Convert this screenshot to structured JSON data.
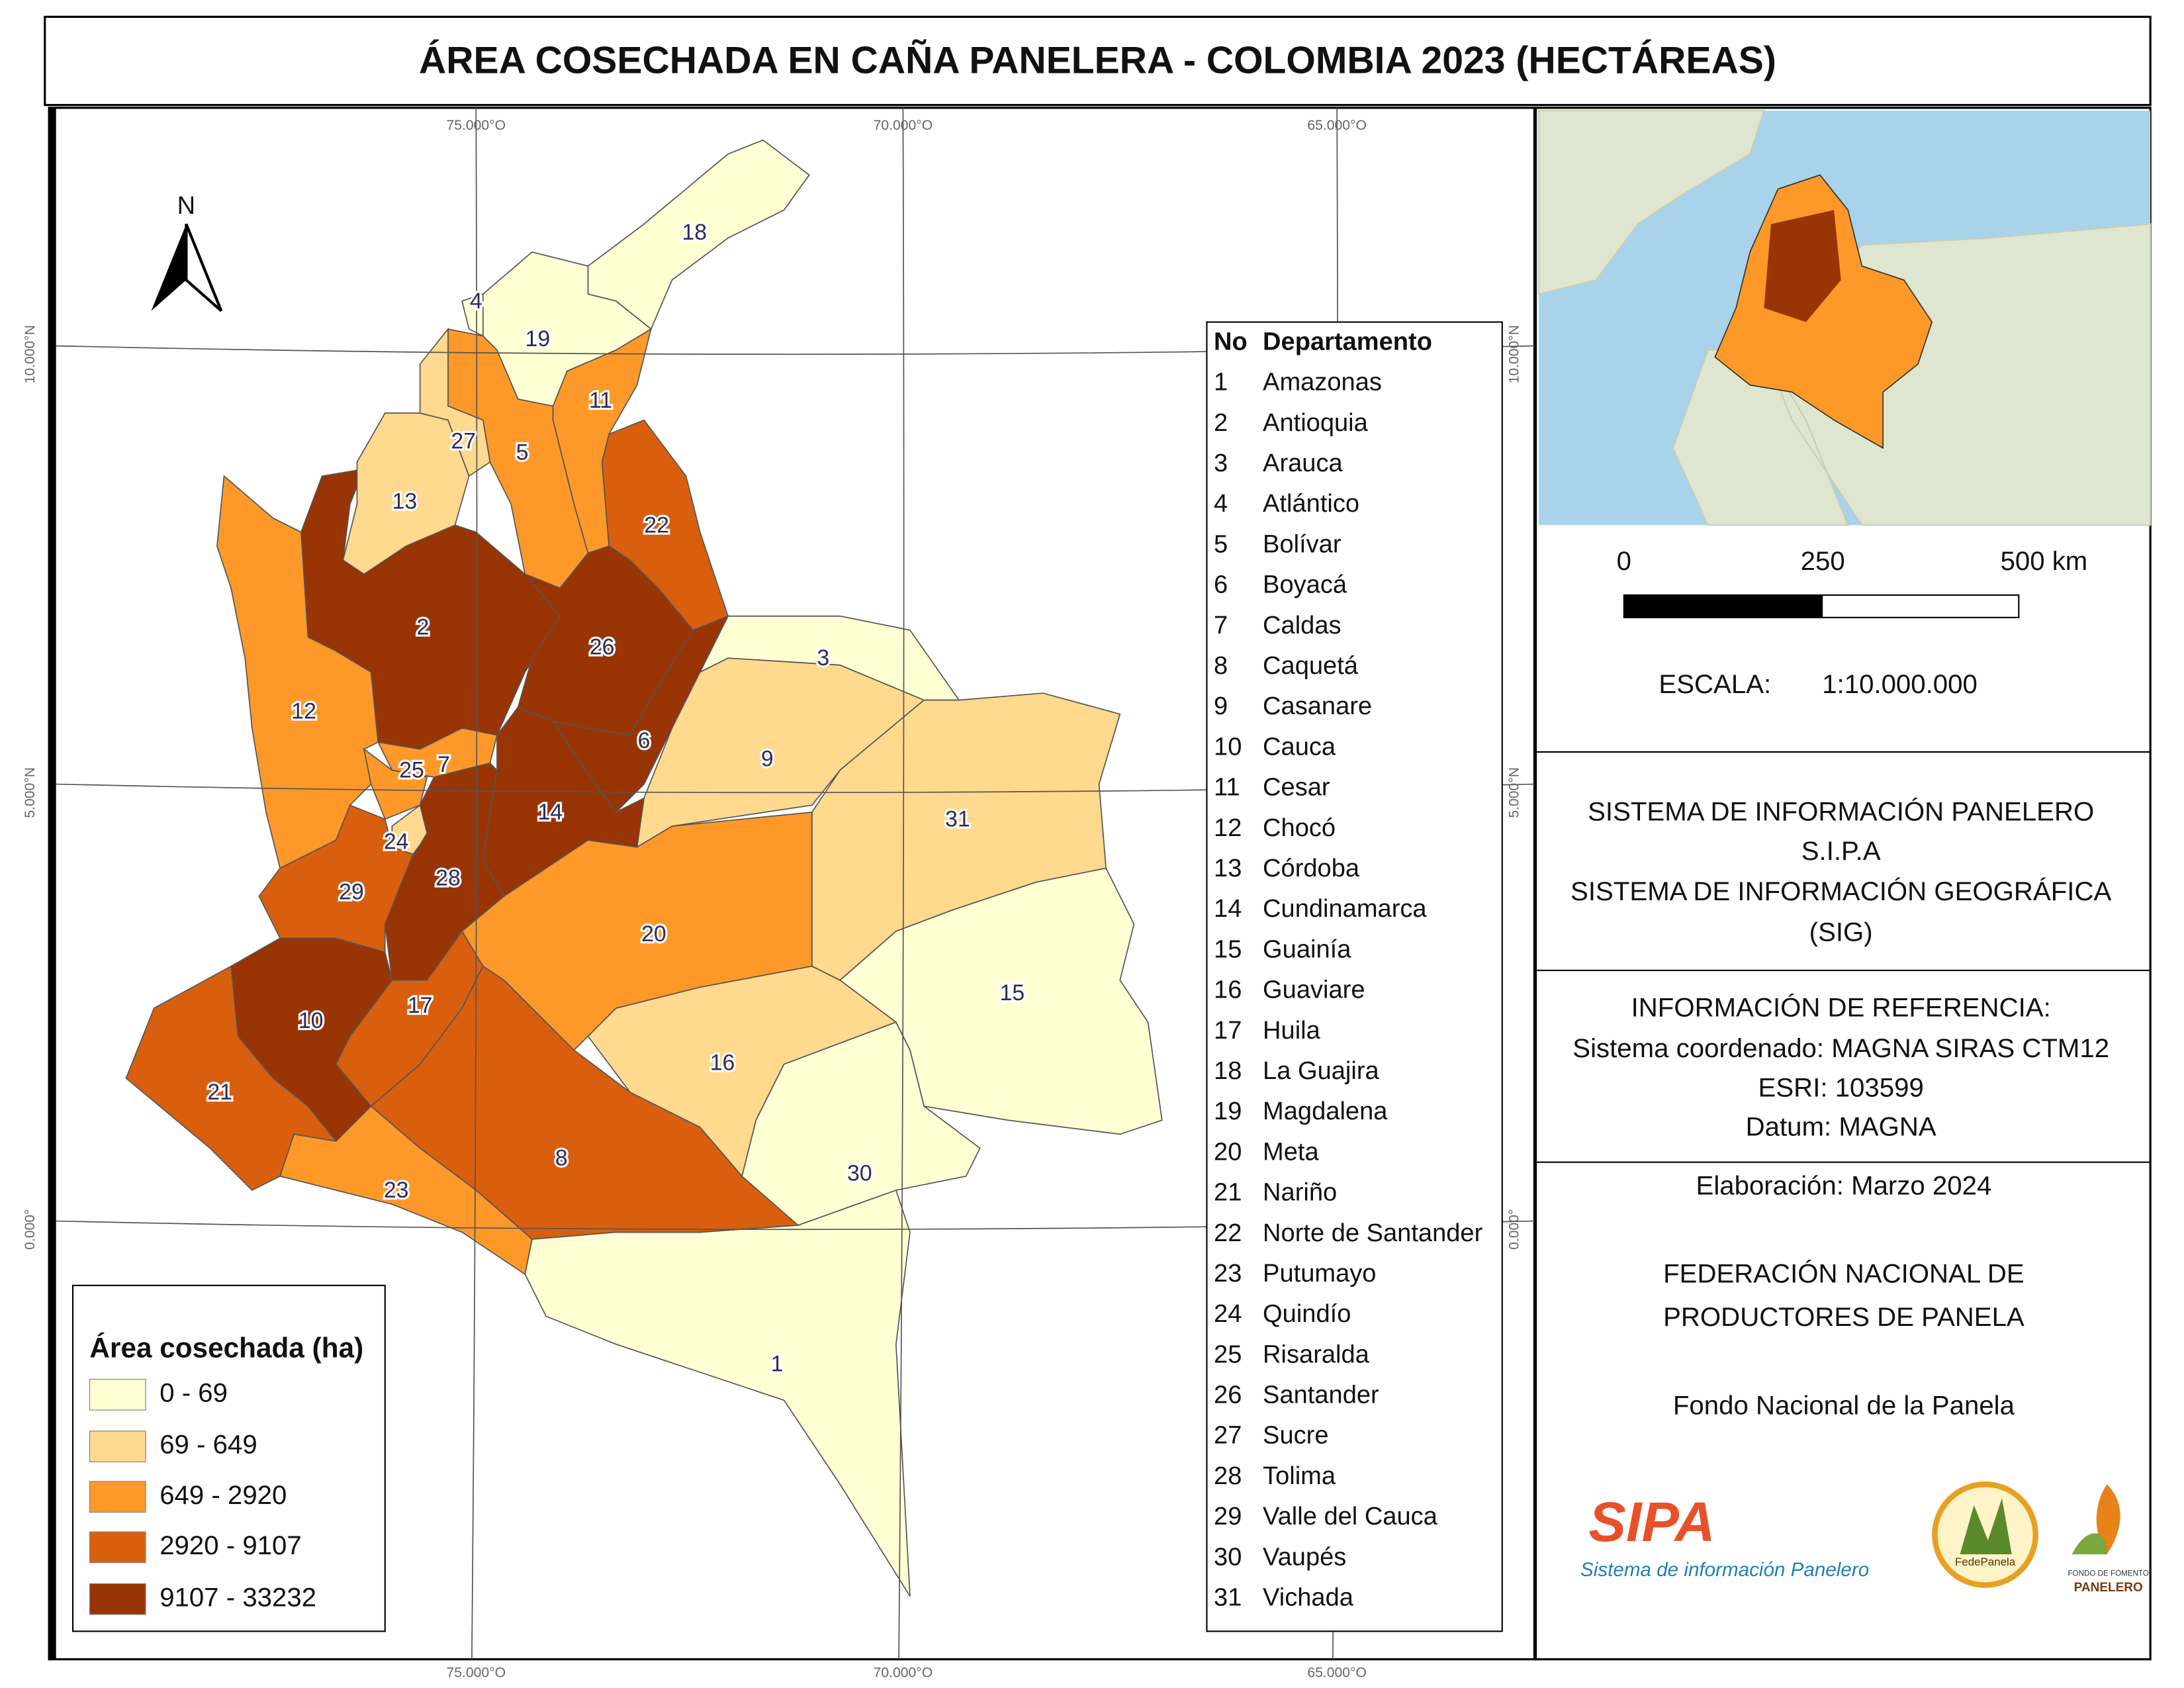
{
  "title": "ÁREA COSECHADA EN CAÑA PANELERA - COLOMBIA 2023 (HECTÁREAS)",
  "graticule": {
    "lon": [
      "75.000°O",
      "70.000°O",
      "65.000°O"
    ],
    "lat": [
      "10.000°N",
      "5.000°N",
      "0.000°"
    ]
  },
  "north": "N",
  "legend": {
    "title": "Área cosechada (ha)",
    "items": [
      {
        "label": "0 - 69",
        "color": "#ffffd4"
      },
      {
        "label": "69 - 649",
        "color": "#fed98e"
      },
      {
        "label": "649 - 2920",
        "color": "#fe9929"
      },
      {
        "label": "2920 - 9107",
        "color": "#d95f0e"
      },
      {
        "label": "9107 - 33232",
        "color": "#993404"
      }
    ]
  },
  "department_table": {
    "header": [
      "No",
      "Departamento"
    ]
  },
  "departments": [
    {
      "no": 1,
      "name": "Amazonas",
      "color": "#ffffd4"
    },
    {
      "no": 2,
      "name": "Antioquia",
      "color": "#993404"
    },
    {
      "no": 3,
      "name": "Arauca",
      "color": "#ffffd4"
    },
    {
      "no": 4,
      "name": "Atlántico",
      "color": "#ffffd4"
    },
    {
      "no": 5,
      "name": "Bolívar",
      "color": "#fe9929"
    },
    {
      "no": 6,
      "name": "Boyacá",
      "color": "#993404"
    },
    {
      "no": 7,
      "name": "Caldas",
      "color": "#fe9929"
    },
    {
      "no": 8,
      "name": "Caquetá",
      "color": "#d95f0e"
    },
    {
      "no": 9,
      "name": "Casanare",
      "color": "#fed98e"
    },
    {
      "no": 10,
      "name": "Cauca",
      "color": "#993404"
    },
    {
      "no": 11,
      "name": "Cesar",
      "color": "#fe9929"
    },
    {
      "no": 12,
      "name": "Chocó",
      "color": "#fe9929"
    },
    {
      "no": 13,
      "name": "Córdoba",
      "color": "#fed98e"
    },
    {
      "no": 14,
      "name": "Cundinamarca",
      "color": "#993404"
    },
    {
      "no": 15,
      "name": "Guainía",
      "color": "#ffffd4"
    },
    {
      "no": 16,
      "name": "Guaviare",
      "color": "#fed98e"
    },
    {
      "no": 17,
      "name": "Huila",
      "color": "#d95f0e"
    },
    {
      "no": 18,
      "name": "La Guajira",
      "color": "#ffffd4"
    },
    {
      "no": 19,
      "name": "Magdalena",
      "color": "#ffffd4"
    },
    {
      "no": 20,
      "name": "Meta",
      "color": "#fe9929"
    },
    {
      "no": 21,
      "name": "Nariño",
      "color": "#d95f0e"
    },
    {
      "no": 22,
      "name": "Norte de Santander",
      "color": "#d95f0e"
    },
    {
      "no": 23,
      "name": "Putumayo",
      "color": "#fe9929"
    },
    {
      "no": 24,
      "name": "Quindío",
      "color": "#fed98e"
    },
    {
      "no": 25,
      "name": "Risaralda",
      "color": "#fe9929"
    },
    {
      "no": 26,
      "name": "Santander",
      "color": "#993404"
    },
    {
      "no": 27,
      "name": "Sucre",
      "color": "#fed98e"
    },
    {
      "no": 28,
      "name": "Tolima",
      "color": "#993404"
    },
    {
      "no": 29,
      "name": "Valle del Cauca",
      "color": "#d95f0e"
    },
    {
      "no": 30,
      "name": "Vaupés",
      "color": "#ffffd4"
    },
    {
      "no": 31,
      "name": "Vichada",
      "color": "#fed98e"
    }
  ],
  "scale_bar": {
    "ticks": [
      "0",
      "250",
      "500 km"
    ]
  },
  "scale": {
    "label": "ESCALA:",
    "value": "1:10.000.000"
  },
  "system": [
    "SISTEMA DE INFORMACIÓN PANELERO",
    "S.I.P.A",
    "SISTEMA DE INFORMACIÓN GEOGRÁFICA",
    "(SIG)"
  ],
  "reference": [
    "INFORMACIÓN DE REFERENCIA:",
    "Sistema coordenado: MAGNA SIRAS CTM12",
    "ESRI: 103599",
    "Datum: MAGNA"
  ],
  "elaboration": "Elaboración: Marzo 2024",
  "federation": [
    "FEDERACIÓN NACIONAL DE",
    "PRODUCTORES DE PANELA"
  ],
  "fund": "Fondo Nacional de la Panela",
  "logos": {
    "sipa": "SIPA",
    "sipa_subtitle": "Sistema de información Panelero",
    "fedepanela": "FedePanela",
    "fondo": "FONDO DE FOMENTO",
    "panelero": "PANELERO"
  }
}
